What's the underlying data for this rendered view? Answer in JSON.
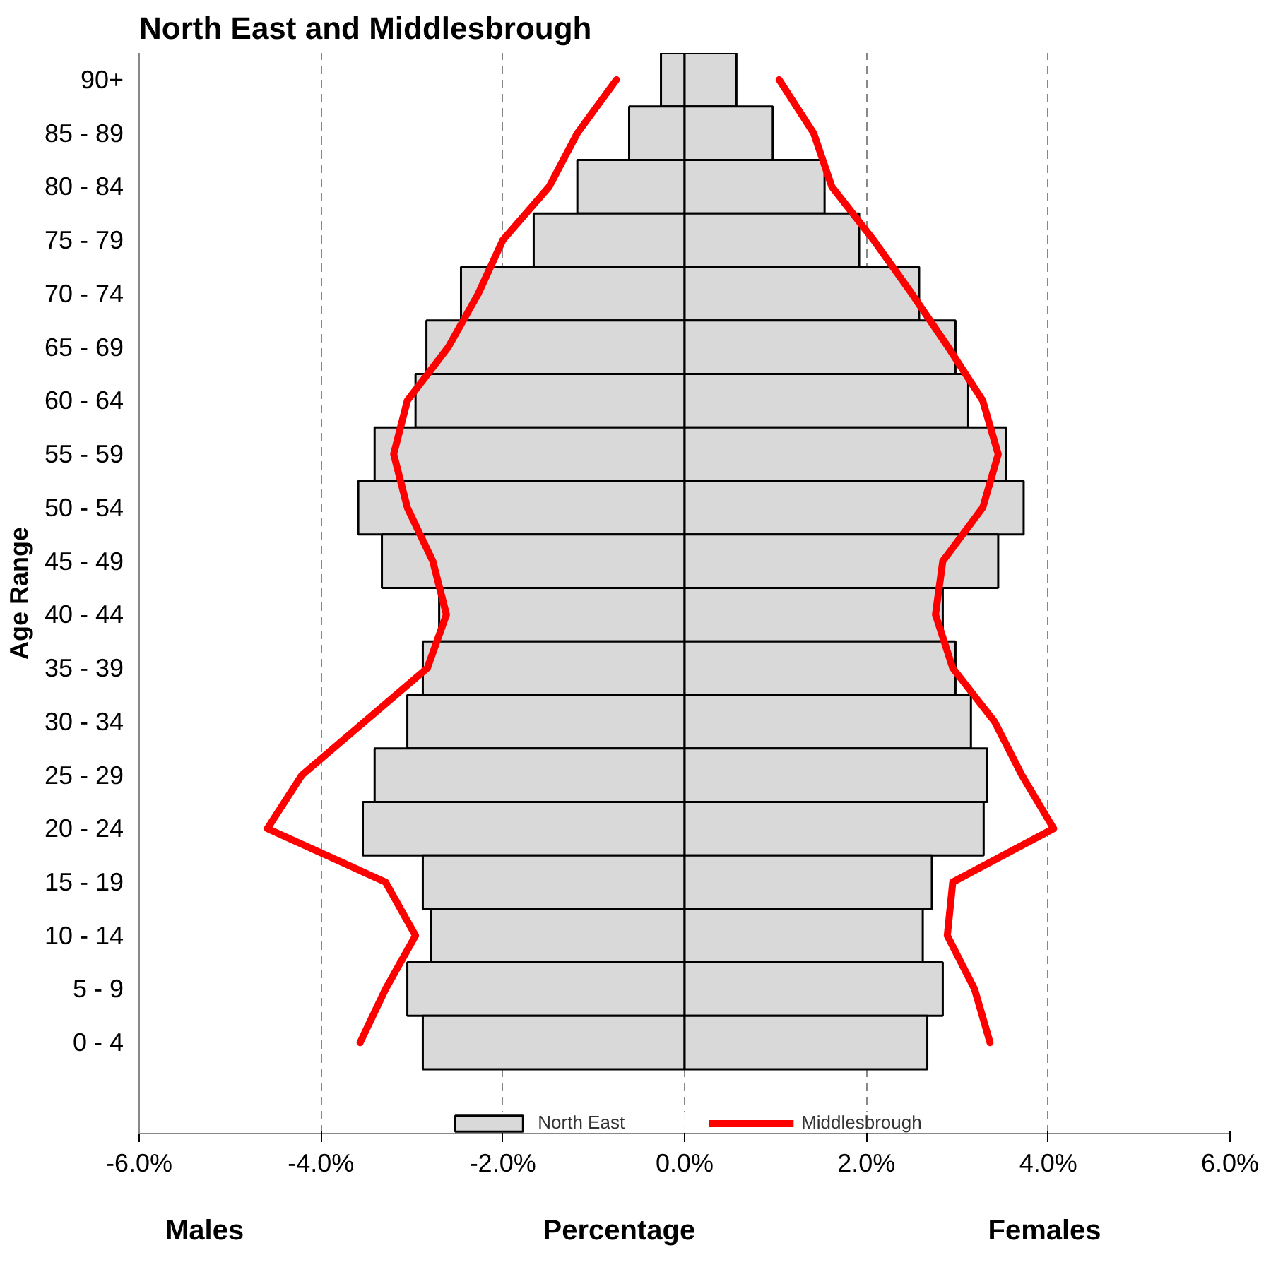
{
  "chart_data": {
    "type": "bar",
    "orientation": "horizontal",
    "title": "North East and Middlesbrough",
    "xlabel": "Percentage",
    "ylabel": "Age Range",
    "annotations": [
      "Males",
      "Females"
    ],
    "categories": [
      "90+",
      "85 - 89",
      "80 - 84",
      "75 - 79",
      "70 - 74",
      "65 - 69",
      "60 - 64",
      "55 - 59",
      "50 - 54",
      "45 - 49",
      "40 - 44",
      "35 - 39",
      "30 - 34",
      "25 - 29",
      "20 - 24",
      "15 - 19",
      "10 - 14",
      "5 - 9",
      "0 - 4"
    ],
    "series": [
      {
        "name": "North East",
        "color": "#d9d9d9",
        "values": [
          -0.26,
          -0.61,
          -1.18,
          -1.66,
          -2.46,
          -2.84,
          -2.96,
          -3.41,
          -3.59,
          -3.33,
          -2.7,
          -2.88,
          -3.05,
          -3.41,
          -3.54,
          -2.88,
          -2.79,
          -3.05,
          -2.88
        ]
      },
      {
        "color": "#d9d9d9",
        "values": [
          0.57,
          0.97,
          1.54,
          1.92,
          2.58,
          2.98,
          3.12,
          3.54,
          3.73,
          3.45,
          2.84,
          2.98,
          3.15,
          3.33,
          3.29,
          2.72,
          2.62,
          2.84,
          2.67
        ]
      },
      {
        "name": "Middlesbrough",
        "type": "line",
        "color": "#ff0000",
        "values": [
          -0.75,
          -1.18,
          -1.49,
          -2.0,
          -2.27,
          -2.6,
          -3.05,
          -3.2,
          -3.05,
          -2.77,
          -2.62,
          -2.83,
          -3.52,
          -4.21,
          -4.59,
          -3.29,
          -2.96,
          -3.29,
          -3.57
        ]
      },
      {
        "type": "line",
        "color": "#ff0000",
        "values": [
          1.04,
          1.42,
          1.62,
          2.08,
          2.5,
          2.9,
          3.28,
          3.45,
          3.28,
          2.84,
          2.76,
          2.95,
          3.41,
          3.71,
          4.06,
          2.95,
          2.89,
          3.19,
          3.36
        ]
      }
    ],
    "xlim": [
      -6,
      6
    ],
    "xticks": [
      {
        "value": -6,
        "label": "-6.0%"
      },
      {
        "value": -4,
        "label": "-4.0%"
      },
      {
        "value": -2,
        "label": "-2.0%"
      },
      {
        "value": 0,
        "label": "0.0%"
      },
      {
        "value": 2,
        "label": "2.0%"
      },
      {
        "value": 4,
        "label": "4.0%"
      },
      {
        "value": 6,
        "label": "6.0%"
      }
    ],
    "stacked": true,
    "grid": "x",
    "legend": "bottom",
    "line_style": "solid"
  }
}
